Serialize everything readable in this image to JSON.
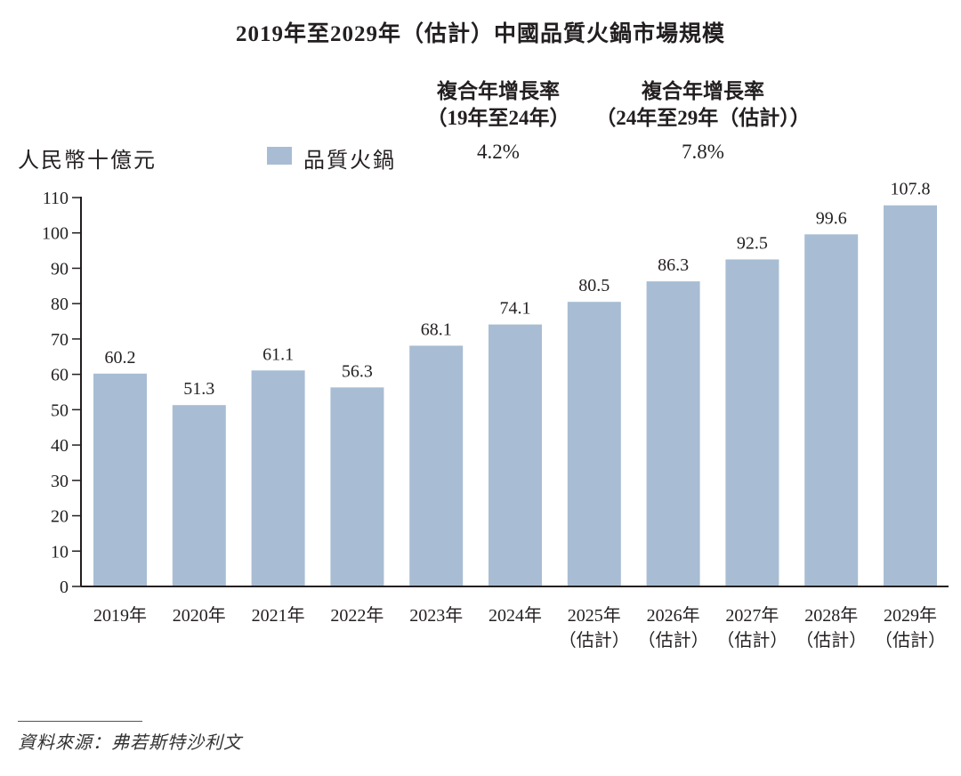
{
  "chart_data": {
    "type": "bar",
    "title": "2019年至2029年（估計）中國品質火鍋市場規模",
    "ylabel": "人民幣十億元",
    "xlabel": "",
    "ylim": [
      0,
      110
    ],
    "yticks": [
      0,
      10,
      20,
      30,
      40,
      50,
      60,
      70,
      80,
      90,
      100,
      110
    ],
    "grid": false,
    "legend_position": "top",
    "colors": {
      "bar": "#a8bdd3",
      "axis": "#231f20"
    },
    "categories": [
      [
        "2019年",
        ""
      ],
      [
        "2020年",
        ""
      ],
      [
        "2021年",
        ""
      ],
      [
        "2022年",
        ""
      ],
      [
        "2023年",
        ""
      ],
      [
        "2024年",
        ""
      ],
      [
        "2025年",
        "（估計）"
      ],
      [
        "2026年",
        "（估計）"
      ],
      [
        "2027年",
        "（估計）"
      ],
      [
        "2028年",
        "（估計）"
      ],
      [
        "2029年",
        "（估計）"
      ]
    ],
    "series": [
      {
        "name": "品質火鍋",
        "values": [
          60.2,
          51.3,
          61.1,
          56.3,
          68.1,
          74.1,
          80.5,
          86.3,
          92.5,
          99.6,
          107.8
        ],
        "labels": [
          "60.2",
          "51.3",
          "61.1",
          "56.3",
          "68.1",
          "74.1",
          "80.5",
          "86.3",
          "92.5",
          "99.6",
          "107.8"
        ]
      }
    ],
    "cagr": [
      {
        "line1": "複合年增長率",
        "line2": "（19年至24年）",
        "value": "4.2%"
      },
      {
        "line1": "複合年增長率",
        "line2": "（24年至29年（估計））",
        "value": "7.8%"
      }
    ]
  },
  "source": "資料來源：弗若斯特沙利文"
}
